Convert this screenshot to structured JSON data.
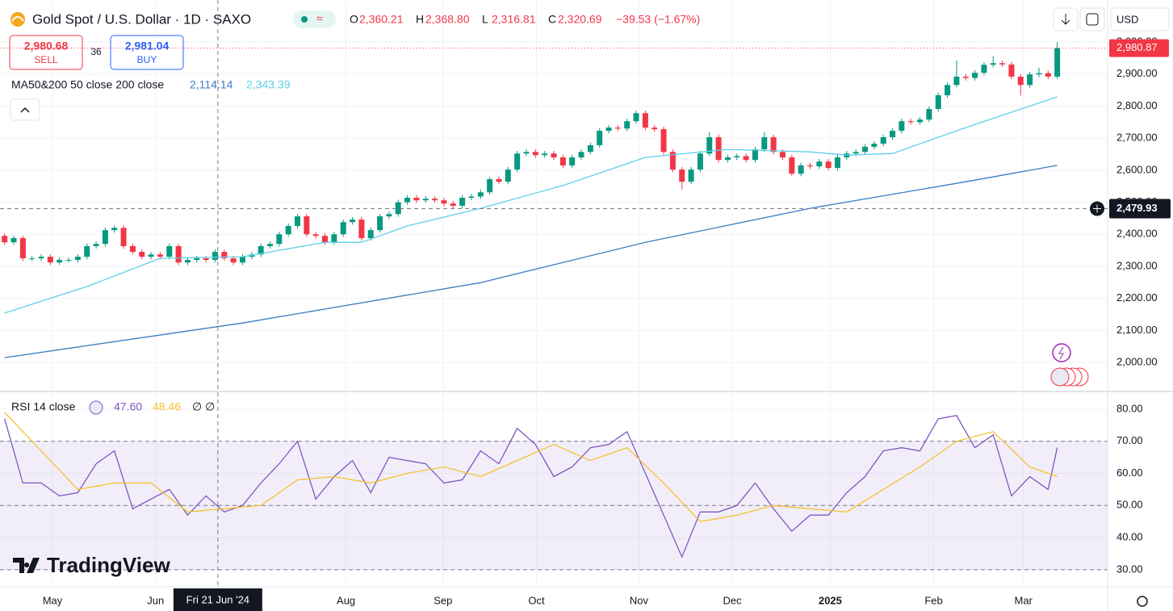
{
  "header": {
    "title": "Gold Spot / U.S. Dollar · 1D · SAXO",
    "ohlc": [
      {
        "label": "O",
        "value": "2,360.21"
      },
      {
        "label": "H",
        "value": "2,368.80"
      },
      {
        "label": "L",
        "value": "2,316.81"
      },
      {
        "label": "C",
        "value": "2,320.69"
      }
    ],
    "change": "−39.53 (−1.67%)"
  },
  "trade": {
    "sell_price": "2,980.68",
    "sell": "SELL",
    "spread": "36",
    "buy_price": "2,981.04",
    "buy": "BUY"
  },
  "currency": "USD",
  "brand": "TradingView",
  "chart_data": [
    {
      "type": "candlestick",
      "grid": true,
      "legend": {
        "label": "MA50&200 50 close 200 close",
        "readouts": [
          "2,114.14",
          "2,343.39"
        ]
      },
      "colors": {
        "up": "#089981",
        "down": "#f23645"
      },
      "xlim": [
        -0.5,
        120.5
      ],
      "ylim": [
        1912,
        3106
      ],
      "xticks": [
        {
          "value": 5.23,
          "label": "May"
        },
        {
          "value": 16.5,
          "label": "Jun"
        },
        {
          "value": 37.3,
          "label": "Aug"
        },
        {
          "value": 47.9,
          "label": "Sep"
        },
        {
          "value": 58.1,
          "label": "Oct"
        },
        {
          "value": 69.3,
          "label": "Nov"
        },
        {
          "value": 79.5,
          "label": "Dec"
        },
        {
          "value": 90.2,
          "label": "2025"
        },
        {
          "value": 101.5,
          "label": "Feb"
        },
        {
          "value": 111.3,
          "label": "Mar"
        }
      ],
      "yticks": [
        {
          "value": 2000,
          "label": "2,000.00"
        },
        {
          "value": 2100,
          "label": "2,100.00"
        },
        {
          "value": 2200,
          "label": "2,200.00"
        },
        {
          "value": 2300,
          "label": "2,300.00"
        },
        {
          "value": 2400,
          "label": "2,400.00"
        },
        {
          "value": 2500,
          "label": "2,500.00"
        },
        {
          "value": 2600,
          "label": "2,600.00"
        },
        {
          "value": 2700,
          "label": "2,700.00"
        },
        {
          "value": 2800,
          "label": "2,800.00"
        },
        {
          "value": 2900,
          "label": "2,900.00"
        },
        {
          "value": 3000,
          "label": "3,000.00"
        }
      ],
      "open": [
        2395,
        2375,
        2388,
        2325,
        2325,
        2330,
        2312,
        2320,
        2320,
        2330,
        2363,
        2370,
        2413,
        2420,
        2363,
        2345,
        2330,
        2337,
        2330,
        2363,
        2312,
        2320,
        2325,
        2320,
        2345,
        2325,
        2312,
        2330,
        2337,
        2363,
        2370,
        2400,
        2426,
        2456,
        2400,
        2395,
        2375,
        2400,
        2438,
        2446,
        2388,
        2413,
        2456,
        2463,
        2500,
        2514,
        2506,
        2511,
        2506,
        2496,
        2489,
        2514,
        2518,
        2531,
        2572,
        2564,
        2602,
        2652,
        2657,
        2647,
        2652,
        2640,
        2615,
        2640,
        2657,
        2678,
        2723,
        2733,
        2730,
        2753,
        2778,
        2733,
        2728,
        2657,
        2602,
        2564,
        2602,
        2652,
        2703,
        2632,
        2640,
        2644,
        2632,
        2665,
        2703,
        2657,
        2640,
        2589,
        2615,
        2612,
        2627,
        2607,
        2640,
        2652,
        2657,
        2673,
        2683,
        2703,
        2723,
        2753,
        2750,
        2758,
        2791,
        2834,
        2866,
        2892,
        2888,
        2904,
        2929,
        2934,
        2930,
        2892,
        2866,
        2899,
        2903,
        2892
      ],
      "high": [
        2403,
        2396,
        2396,
        2333,
        2338,
        2338,
        2328,
        2328,
        2338,
        2371,
        2378,
        2421,
        2428,
        2428,
        2371,
        2353,
        2345,
        2345,
        2371,
        2371,
        2328,
        2333,
        2333,
        2353,
        2353,
        2333,
        2338,
        2345,
        2371,
        2378,
        2408,
        2434,
        2464,
        2464,
        2408,
        2403,
        2408,
        2446,
        2454,
        2454,
        2421,
        2464,
        2471,
        2508,
        2522,
        2522,
        2519,
        2519,
        2514,
        2504,
        2522,
        2526,
        2539,
        2580,
        2580,
        2610,
        2660,
        2665,
        2665,
        2660,
        2660,
        2648,
        2648,
        2665,
        2686,
        2731,
        2741,
        2741,
        2761,
        2786,
        2786,
        2741,
        2736,
        2665,
        2610,
        2610,
        2660,
        2720,
        2711,
        2648,
        2652,
        2652,
        2673,
        2720,
        2711,
        2665,
        2648,
        2623,
        2623,
        2635,
        2635,
        2648,
        2660,
        2665,
        2681,
        2691,
        2711,
        2731,
        2761,
        2761,
        2766,
        2799,
        2842,
        2874,
        2942,
        2900,
        2912,
        2937,
        2956,
        2942,
        2938,
        2900,
        2907,
        2920,
        2911,
        3000
      ],
      "low": [
        2367,
        2367,
        2317,
        2317,
        2317,
        2304,
        2304,
        2312,
        2312,
        2322,
        2355,
        2362,
        2405,
        2355,
        2337,
        2322,
        2322,
        2322,
        2322,
        2304,
        2304,
        2312,
        2312,
        2312,
        2317,
        2304,
        2304,
        2322,
        2329,
        2355,
        2362,
        2392,
        2418,
        2392,
        2387,
        2367,
        2367,
        2392,
        2430,
        2380,
        2380,
        2405,
        2448,
        2455,
        2492,
        2498,
        2498,
        2498,
        2488,
        2481,
        2481,
        2506,
        2510,
        2523,
        2556,
        2556,
        2594,
        2644,
        2639,
        2639,
        2632,
        2607,
        2607,
        2632,
        2649,
        2670,
        2715,
        2722,
        2722,
        2745,
        2725,
        2720,
        2649,
        2594,
        2540,
        2556,
        2594,
        2644,
        2624,
        2624,
        2632,
        2624,
        2624,
        2657,
        2649,
        2632,
        2581,
        2581,
        2604,
        2604,
        2599,
        2599,
        2632,
        2644,
        2649,
        2665,
        2675,
        2695,
        2715,
        2742,
        2742,
        2750,
        2783,
        2826,
        2858,
        2880,
        2880,
        2896,
        2921,
        2922,
        2884,
        2833,
        2858,
        2891,
        2884,
        2884
      ],
      "close": [
        2375,
        2388,
        2325,
        2325,
        2330,
        2312,
        2320,
        2320,
        2330,
        2363,
        2370,
        2413,
        2420,
        2363,
        2345,
        2330,
        2337,
        2330,
        2363,
        2312,
        2320,
        2325,
        2320,
        2345,
        2325,
        2312,
        2330,
        2337,
        2363,
        2370,
        2400,
        2426,
        2456,
        2400,
        2395,
        2375,
        2400,
        2438,
        2446,
        2388,
        2413,
        2456,
        2463,
        2500,
        2514,
        2506,
        2511,
        2506,
        2496,
        2489,
        2514,
        2518,
        2531,
        2572,
        2564,
        2602,
        2652,
        2657,
        2647,
        2652,
        2640,
        2615,
        2640,
        2657,
        2678,
        2723,
        2733,
        2730,
        2753,
        2778,
        2733,
        2728,
        2657,
        2602,
        2564,
        2602,
        2652,
        2703,
        2632,
        2640,
        2644,
        2632,
        2665,
        2703,
        2657,
        2640,
        2589,
        2615,
        2612,
        2627,
        2607,
        2640,
        2652,
        2657,
        2673,
        2683,
        2703,
        2723,
        2753,
        2750,
        2758,
        2791,
        2834,
        2866,
        2892,
        2888,
        2904,
        2929,
        2934,
        2930,
        2892,
        2866,
        2899,
        2903,
        2892,
        2981
      ],
      "series": [
        {
          "color": "#3a7cc0",
          "x": [
            0,
            26,
            52,
            70,
            88,
            105,
            115
          ],
          "values": [
            2015,
            2123,
            2249,
            2375,
            2481,
            2564,
            2615
          ]
        },
        {
          "color": "#5fd0e8",
          "x": [
            0,
            9,
            17,
            26,
            35,
            39,
            44,
            52,
            61,
            70,
            79,
            88,
            92,
            97,
            105,
            115
          ],
          "values": [
            2154,
            2237,
            2325,
            2330,
            2375,
            2375,
            2426,
            2481,
            2552,
            2640,
            2665,
            2657,
            2647,
            2652,
            2733,
            2829
          ]
        }
      ],
      "last_price": {
        "value": 2980.87,
        "label": "2,980.87"
      },
      "crosshair": {
        "x": {
          "value": 23.3,
          "label": "Fri 21 Jun '24"
        },
        "y": {
          "value": 2479.93,
          "label": "2,479.93"
        }
      }
    },
    {
      "type": "line",
      "grid": true,
      "legend": {
        "label": "RSI 14 close",
        "readouts": [
          "47.60",
          "48.46"
        ],
        "extra": "∅ ∅"
      },
      "ylim": [
        24.7,
        85
      ],
      "yticks": [
        {
          "value": 30,
          "label": "30.00"
        },
        {
          "value": 40,
          "label": "40.00"
        },
        {
          "value": 50,
          "label": "50.00"
        },
        {
          "value": 60,
          "label": "60.00"
        },
        {
          "value": 70,
          "label": "70.00"
        },
        {
          "value": 80,
          "label": "80.00"
        }
      ],
      "band": [
        30,
        70
      ],
      "band_color": "#7e57c2",
      "levels": [
        70,
        50,
        30
      ],
      "series": [
        {
          "color": "#7e57c2",
          "x": [
            0,
            2,
            4,
            6,
            8,
            10,
            12,
            14,
            16,
            18,
            20,
            22,
            24,
            26,
            28,
            30,
            32,
            34,
            36,
            38,
            40,
            42,
            44,
            46,
            48,
            50,
            52,
            54,
            56,
            58,
            60,
            62,
            64,
            66,
            68,
            70,
            72,
            74,
            76,
            78,
            80,
            82,
            84,
            86,
            88,
            90,
            92,
            94,
            96,
            98,
            100,
            102,
            104,
            106,
            108,
            110,
            112,
            114,
            115
          ],
          "values": [
            77,
            57,
            57,
            53,
            54,
            63,
            67,
            49,
            52,
            55,
            47,
            53,
            48,
            50,
            57,
            63,
            70,
            52,
            59,
            64,
            54,
            65,
            64,
            63,
            57,
            58,
            67,
            63,
            74,
            69,
            59,
            62,
            68,
            69,
            73,
            60,
            47,
            34,
            48,
            48,
            50,
            57,
            49,
            42,
            47,
            47,
            54,
            59,
            67,
            68,
            67,
            77,
            78,
            68,
            72,
            53,
            59,
            55,
            68
          ]
        },
        {
          "color": "#f5c230",
          "x": [
            0,
            4,
            8,
            12,
            16,
            20,
            24,
            28,
            32,
            36,
            40,
            44,
            48,
            52,
            56,
            60,
            64,
            68,
            72,
            76,
            80,
            84,
            88,
            92,
            96,
            100,
            104,
            108,
            112,
            115
          ],
          "values": [
            79,
            67,
            55,
            57,
            57,
            48,
            49,
            50,
            58,
            59,
            57,
            60,
            62,
            59,
            64,
            69,
            64,
            68,
            57,
            45,
            47,
            50,
            49,
            48,
            55,
            62,
            70,
            73,
            62,
            59
          ]
        }
      ]
    }
  ]
}
